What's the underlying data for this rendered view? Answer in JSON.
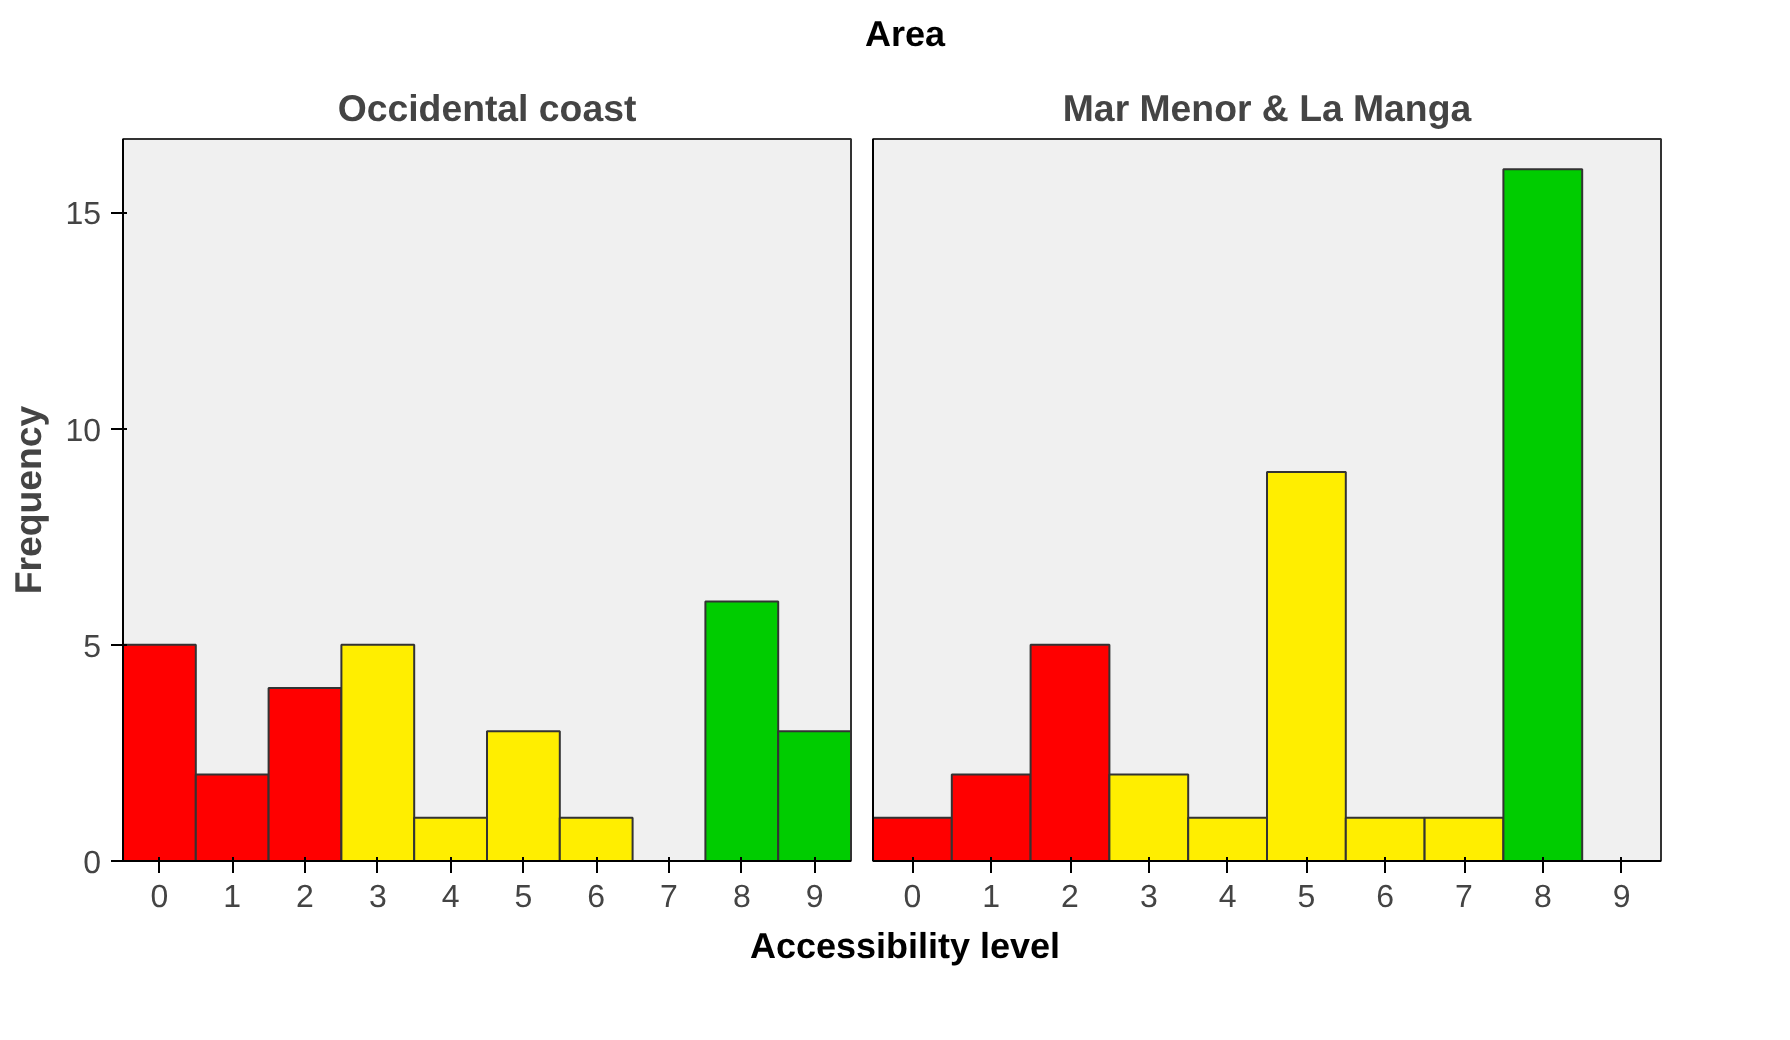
{
  "chart_data": [
    {
      "type": "bar",
      "title": "Occidental coast",
      "annotations": [
        "Area"
      ],
      "xlabel": "Accessibility level",
      "ylabel": "Frequency",
      "categories": [
        "0",
        "1",
        "2",
        "3",
        "4",
        "5",
        "6",
        "7",
        "8",
        "9"
      ],
      "values": [
        5,
        2,
        4,
        5,
        1,
        3,
        1,
        0,
        6,
        3
      ],
      "colors": [
        "#ff0000",
        "#ff0000",
        "#ff0000",
        "#ffee00",
        "#ffee00",
        "#ffee00",
        "#ffee00",
        "#ffee00",
        "#00cc00",
        "#00cc00"
      ],
      "ylim": [
        0,
        16.7
      ],
      "yticks": [
        0,
        5,
        10,
        15
      ],
      "grid": false
    },
    {
      "type": "bar",
      "title": "Mar Menor & La Manga",
      "categories": [
        "0",
        "1",
        "2",
        "3",
        "4",
        "5",
        "6",
        "7",
        "8",
        "9"
      ],
      "values": [
        1,
        2,
        5,
        2,
        1,
        9,
        1,
        1,
        16,
        0
      ],
      "colors": [
        "#ff0000",
        "#ff0000",
        "#ff0000",
        "#ffee00",
        "#ffee00",
        "#ffee00",
        "#ffee00",
        "#ffee00",
        "#00cc00",
        "#00cc00"
      ],
      "ylim": [
        0,
        16.7
      ],
      "yticks": [
        0,
        5,
        10,
        15
      ],
      "tick_labels": "x",
      "grid": false
    }
  ]
}
